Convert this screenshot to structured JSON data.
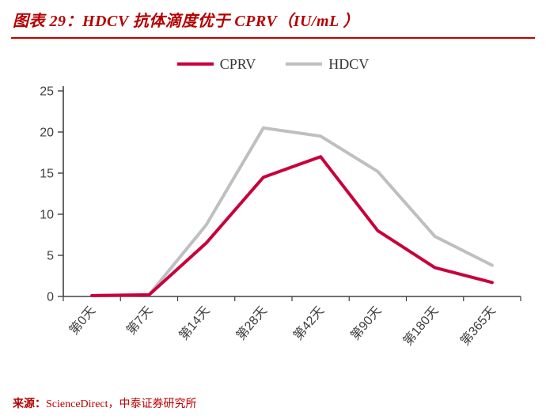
{
  "title": "图表 29：HDCV 抗体滴度优于 CPRV（IU/mL ）",
  "source": {
    "prefix": "来源：",
    "text": "ScienceDirect，中泰证券研究所"
  },
  "colors": {
    "accent": "#c00000",
    "axis": "#404040",
    "cprv": "#c8003c",
    "hdcv": "#bfbfbf"
  },
  "chart_data": {
    "type": "line",
    "title": "HDCV 抗体滴度优于 CPRV（IU/mL）",
    "categories": [
      "第0天",
      "第7天",
      "第14天",
      "第28天",
      "第42天",
      "第90天",
      "第180天",
      "第365天"
    ],
    "series": [
      {
        "name": "CPRV",
        "color": "#c8003c",
        "values": [
          0.1,
          0.2,
          6.5,
          14.5,
          17.0,
          8.0,
          3.5,
          1.7
        ]
      },
      {
        "name": "HDCV",
        "color": "#bfbfbf",
        "values": [
          0.1,
          0.2,
          8.7,
          20.5,
          19.5,
          15.2,
          7.3,
          3.8
        ]
      }
    ],
    "xlabel": "",
    "ylabel": "",
    "ylim": [
      0,
      25
    ],
    "yticks": [
      0,
      5,
      10,
      15,
      20,
      25
    ],
    "grid": false,
    "legend_position": "top-center"
  }
}
